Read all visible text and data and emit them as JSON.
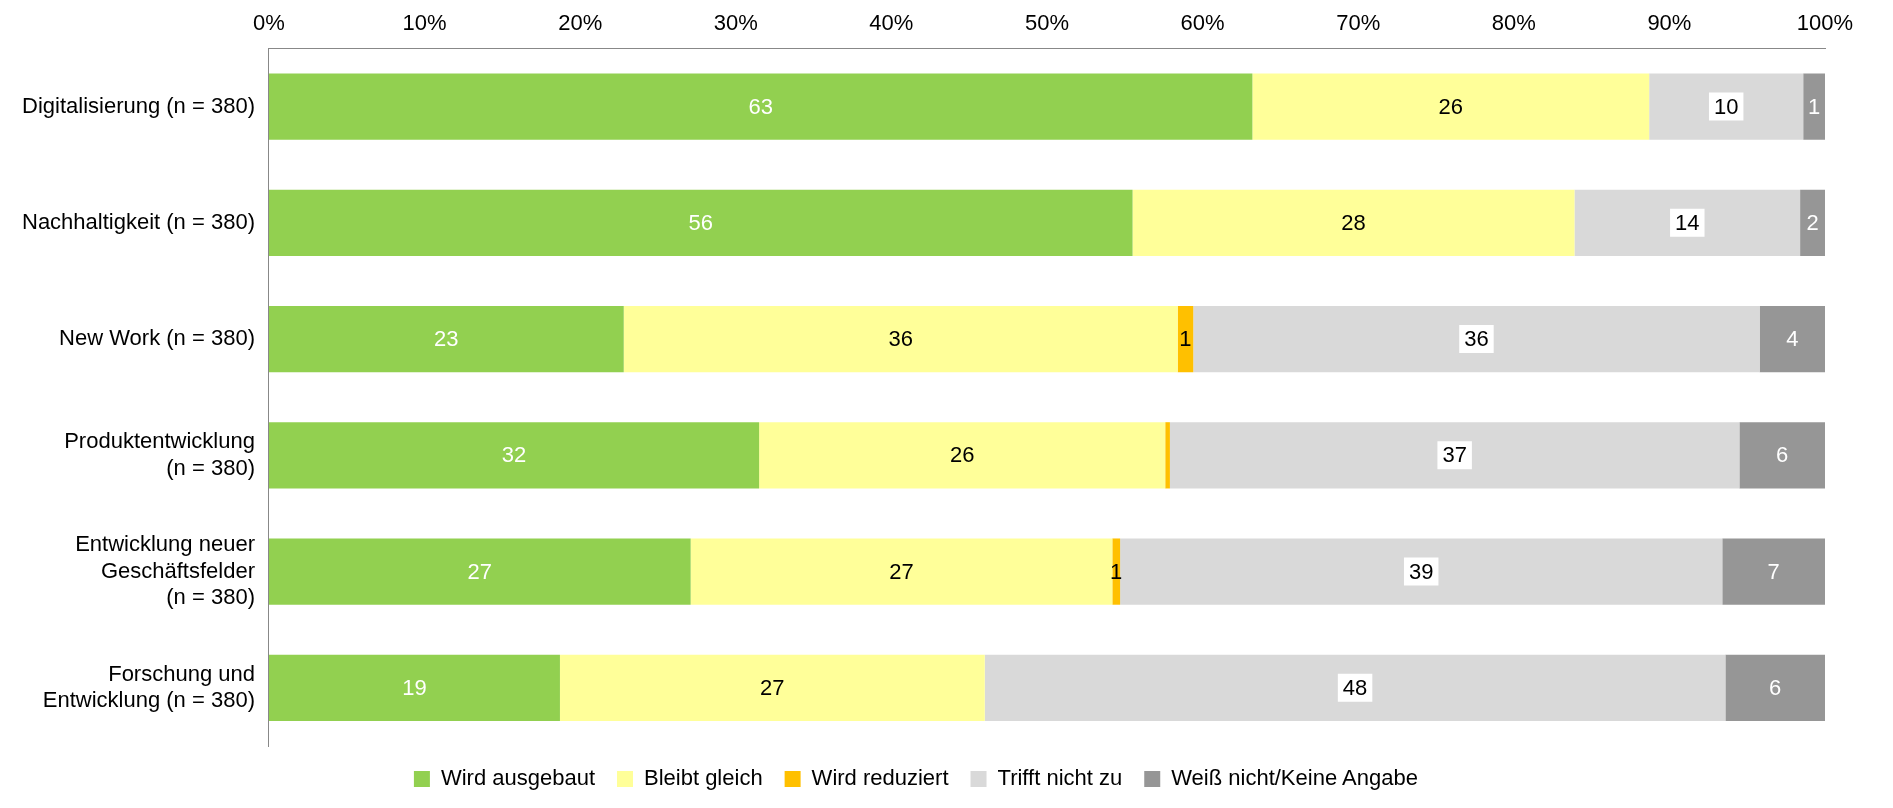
{
  "chart_data": {
    "type": "bar",
    "orientation": "horizontal",
    "stacked": true,
    "categories": [
      "Digitalisierung (n = 380)",
      "Nachhaltigkeit (n = 380)",
      "New Work (n = 380)",
      "Produktentwicklung\n(n = 380)",
      "Entwicklung neuer\nGeschäftsfelder\n(n = 380)",
      "Forschung und\nEntwicklung (n = 380)"
    ],
    "series": [
      {
        "name": "Wird ausgebaut",
        "color": "#92d050",
        "values": [
          63.2,
          55.5,
          22.8,
          31.5,
          27.1,
          18.7
        ],
        "value_labels": [
          "63",
          "56",
          "23",
          "32",
          "27",
          "19"
        ]
      },
      {
        "name": "Bleibt gleich",
        "color": "#ffff99",
        "values": [
          25.5,
          28.4,
          35.6,
          26.1,
          27.1,
          27.3
        ],
        "value_labels": [
          "26",
          "28",
          "36",
          "26",
          "27",
          "27"
        ]
      },
      {
        "name": "Wird reduziert",
        "color": "#ffc000",
        "values": [
          0,
          0,
          1,
          0.3,
          0.5,
          0
        ],
        "value_labels": [
          null,
          null,
          "1",
          null,
          "1",
          null
        ]
      },
      {
        "name": "Trifft nicht zu",
        "color": "#d9d9d9",
        "values": [
          9.9,
          14.5,
          36.4,
          36.6,
          38.7,
          47.6
        ],
        "value_labels": [
          "10",
          "14",
          "36",
          "37",
          "39",
          "48"
        ]
      },
      {
        "name": "Weiß nicht/Keine Angabe",
        "color": "#969696",
        "values": [
          1.4,
          1.6,
          4.2,
          5.5,
          6.6,
          6.4
        ],
        "value_labels": [
          "1",
          "2",
          "4",
          "6",
          "7",
          "6"
        ]
      }
    ],
    "xlim": [
      0,
      100
    ],
    "xticks": [
      {
        "value": 0,
        "label": "0%"
      },
      {
        "value": 10,
        "label": "10%"
      },
      {
        "value": 20,
        "label": "20%"
      },
      {
        "value": 30,
        "label": "30%"
      },
      {
        "value": 40,
        "label": "40%"
      },
      {
        "value": 50,
        "label": "50%"
      },
      {
        "value": 60,
        "label": "60%"
      },
      {
        "value": 70,
        "label": "70%"
      },
      {
        "value": 80,
        "label": "80%"
      },
      {
        "value": 90,
        "label": "90%"
      },
      {
        "value": 100,
        "label": "100%"
      }
    ],
    "grid": false,
    "legend": "bottom"
  }
}
